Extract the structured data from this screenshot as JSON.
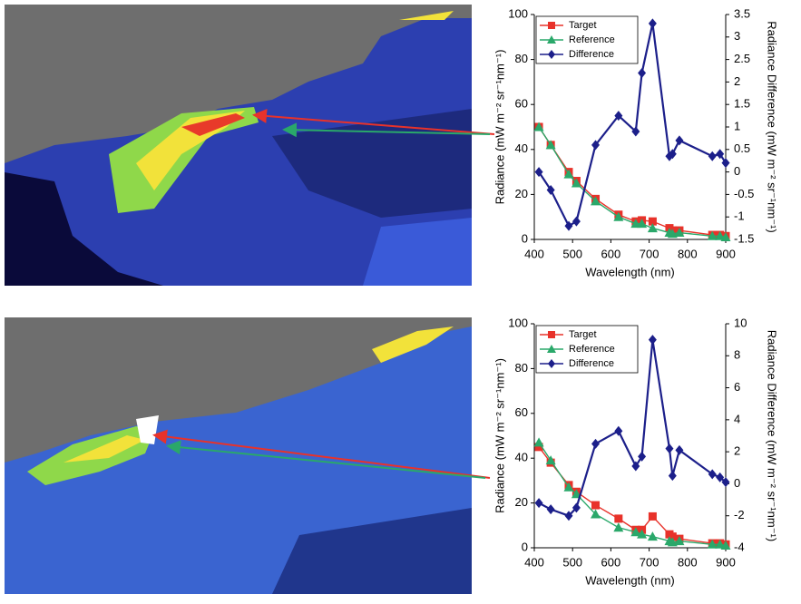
{
  "chart_data": [
    {
      "type": "line",
      "x": [
        412,
        443,
        490,
        510,
        560,
        620,
        665,
        681,
        709,
        753,
        761,
        779,
        865,
        885,
        900
      ],
      "series": [
        {
          "name": "Target",
          "color": "#e8322a",
          "marker": "square",
          "values": [
            50,
            42,
            30,
            26,
            18,
            11,
            8,
            8.5,
            8,
            5,
            4,
            4,
            2,
            2,
            1.5
          ]
        },
        {
          "name": "Reference",
          "color": "#2aa86a",
          "marker": "triangle",
          "values": [
            50,
            42,
            29,
            25,
            17,
            10,
            7,
            7,
            5,
            3,
            2.5,
            3,
            1.5,
            1.5,
            1
          ]
        },
        {
          "name": "Difference",
          "color": "#1c1f8a",
          "marker": "diamond",
          "axis": "y2",
          "values": [
            0,
            -0.4,
            -1.2,
            -1.1,
            0.6,
            1.25,
            0.9,
            2.2,
            3.3,
            0.35,
            0.4,
            0.7,
            0.35,
            0.4,
            0.2
          ]
        }
      ],
      "xlabel": "Wavelength (nm)",
      "ylabel": "Radiance (mW m⁻² sr⁻¹nm⁻¹)",
      "y2label": "Radiance Difference (mW m⁻² sr⁻¹nm⁻¹)",
      "xlim": [
        400,
        900
      ],
      "xticks": [
        400,
        500,
        600,
        700,
        800,
        900
      ],
      "ylim": [
        0,
        100
      ],
      "yticks": [
        0,
        20,
        40,
        60,
        80,
        100
      ],
      "y2lim": [
        -1.5,
        3.5
      ],
      "y2ticks": [
        -1.5,
        -1,
        -0.5,
        0,
        0.5,
        1,
        1.5,
        2,
        2.5,
        3,
        3.5
      ],
      "legend": "upper-left",
      "grid": false
    },
    {
      "type": "line",
      "x": [
        412,
        443,
        490,
        510,
        560,
        620,
        665,
        681,
        709,
        753,
        761,
        779,
        865,
        885,
        900
      ],
      "series": [
        {
          "name": "Target",
          "color": "#e8322a",
          "marker": "square",
          "values": [
            45,
            38,
            28,
            25,
            19,
            13,
            8,
            8,
            14,
            6,
            5,
            4,
            2,
            2,
            1.5
          ]
        },
        {
          "name": "Reference",
          "color": "#2aa86a",
          "marker": "triangle",
          "values": [
            47,
            39,
            27,
            24,
            15,
            9,
            7,
            6,
            5,
            3,
            2.5,
            3,
            1.5,
            1.5,
            1
          ]
        },
        {
          "name": "Difference",
          "color": "#1c1f8a",
          "marker": "diamond",
          "axis": "y2",
          "values": [
            -1.2,
            -1.6,
            -2.0,
            -1.5,
            2.5,
            3.3,
            1.1,
            1.7,
            9,
            2.2,
            0.5,
            2.1,
            0.6,
            0.4,
            0.1
          ]
        }
      ],
      "xlabel": "Wavelength (nm)",
      "ylabel": "Radiance (mW m⁻² sr⁻¹nm⁻¹)",
      "y2label": "Radiance Difference (mW m⁻² sr⁻¹nm⁻¹)",
      "xlim": [
        400,
        900
      ],
      "xticks": [
        400,
        500,
        600,
        700,
        800,
        900
      ],
      "ylim": [
        0,
        100
      ],
      "yticks": [
        0,
        20,
        40,
        60,
        80,
        100
      ],
      "y2lim": [
        -4,
        10
      ],
      "y2ticks": [
        -4,
        -2,
        0,
        2,
        4,
        6,
        8,
        10
      ],
      "legend": "upper-left",
      "grid": false
    }
  ]
}
